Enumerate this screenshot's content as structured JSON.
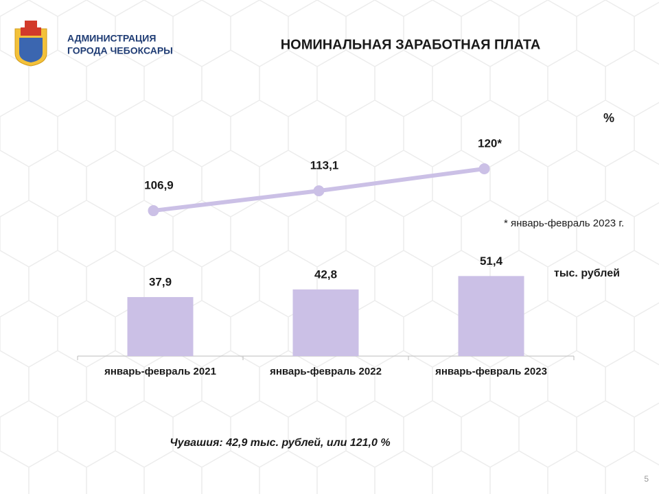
{
  "header": {
    "org_line1": "АДМИНИСТРАЦИЯ",
    "org_line2": "ГОРОДА ЧЕБОКСАРЫ",
    "title": "НОМИНАЛЬНАЯ ЗАРАБОТНАЯ ПЛАТА"
  },
  "chart_data": {
    "type": "combo",
    "categories": [
      "январь-февраль 2021",
      "январь-февраль 2022",
      "январь-февраль 2023"
    ],
    "series": [
      {
        "type": "bar",
        "name": "тыс. рублей",
        "color": "#cbc0e6",
        "values": [
          37.9,
          42.8,
          51.4
        ],
        "value_labels": [
          "37,9",
          "42,8",
          "51,4"
        ]
      },
      {
        "type": "line",
        "name": "%",
        "color": "#cbc0e6",
        "values": [
          106.9,
          113.1,
          120
        ],
        "value_labels": [
          "106,9",
          "113,1",
          "120*"
        ]
      }
    ],
    "annotation": "* январь-февраль 2023 г."
  },
  "footer": {
    "note": "Чувашия: 42,9 тыс. рублей, или 121,0 %",
    "page": "5"
  }
}
